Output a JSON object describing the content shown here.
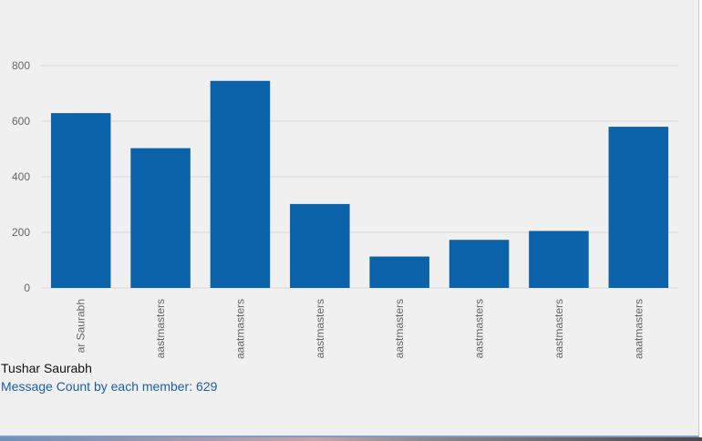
{
  "chart_data": {
    "type": "bar",
    "categories": [
      "ar Saurabh",
      "aastmasters",
      "aaatmasters",
      "aastmasters",
      "aastmasters",
      "aastmasters",
      "aastmasters",
      "aaatmasters"
    ],
    "values": [
      629,
      503,
      745,
      302,
      113,
      173,
      205,
      580
    ],
    "yticks": [
      0,
      200,
      400,
      600,
      800
    ],
    "ylim": [
      0,
      800
    ],
    "title": "",
    "xlabel": "",
    "ylabel": "",
    "grid": true,
    "bar_color": "#0b62a8",
    "grid_color": "#d8d8d8",
    "axis_text_color": "#666666"
  },
  "tooltip": {
    "name": "Tushar Saurabh",
    "count_label": "Message Count by each member: 629"
  }
}
